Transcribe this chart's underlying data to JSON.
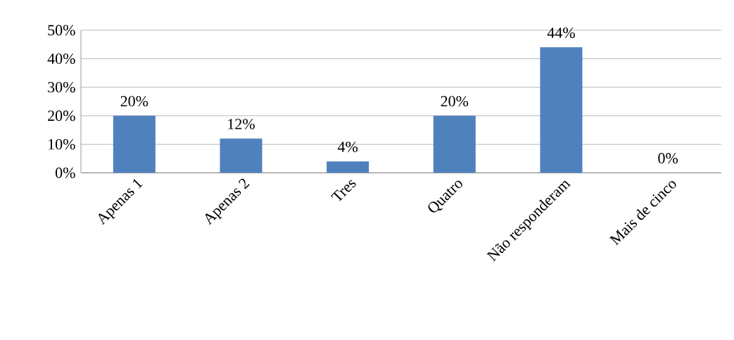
{
  "chart_data": {
    "type": "bar",
    "categories": [
      "Apenas 1",
      "Apenas 2",
      "Tres",
      "Quatro",
      "Não responderam",
      "Mais de cinco"
    ],
    "values": [
      20,
      12,
      4,
      20,
      44,
      0
    ],
    "value_labels": [
      "20%",
      "12%",
      "4%",
      "20%",
      "44%",
      "0%"
    ],
    "color": "#4f81bd",
    "ylim": [
      0,
      50
    ],
    "yticks": [
      {
        "value": 0,
        "label": "0%"
      },
      {
        "value": 10,
        "label": "10%"
      },
      {
        "value": 20,
        "label": "20%"
      },
      {
        "value": 30,
        "label": "30%"
      },
      {
        "value": 40,
        "label": "40%"
      },
      {
        "value": 50,
        "label": "50%"
      }
    ],
    "grid": "y"
  }
}
